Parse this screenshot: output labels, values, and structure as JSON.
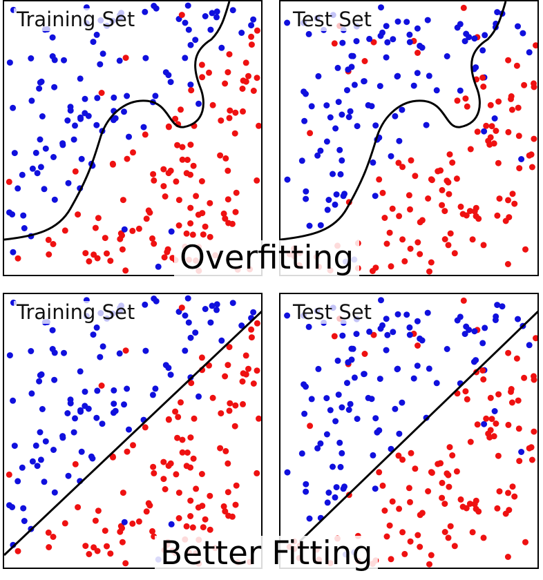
{
  "captions": {
    "top": "Overfitting",
    "bottom": "Better Fitting"
  },
  "panels": {
    "train_over": {
      "title": "Training Set"
    },
    "test_over": {
      "title": "Test Set"
    },
    "train_better": {
      "title": "Training Set"
    },
    "test_better": {
      "title": "Test Set"
    }
  },
  "colors": {
    "class_a": "#1010dd",
    "class_b": "#ee1111",
    "boundary": "#000000",
    "background": "#ffffff"
  }
}
